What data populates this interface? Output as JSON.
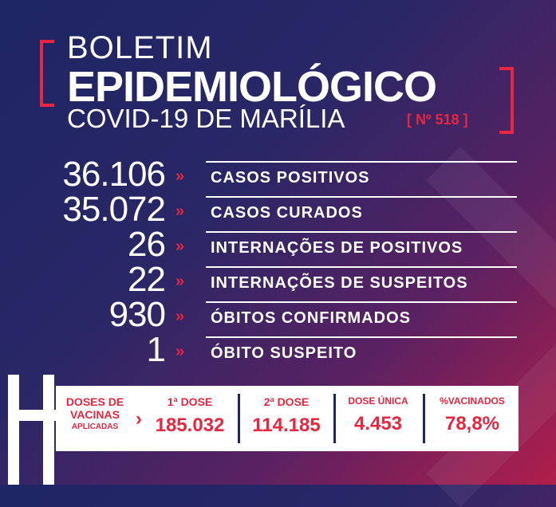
{
  "header": {
    "line1": "BOLETIM",
    "line2": "EPIDEMIOLÓGICO",
    "line3": "COVID-19 DE MARÍLIA",
    "number": "[ Nº 518 ]"
  },
  "stats": [
    {
      "value": "36.106",
      "label": "CASOS POSITIVOS"
    },
    {
      "value": "35.072",
      "label": "CASOS CURADOS"
    },
    {
      "value": "26",
      "label": "INTERNAÇÕES DE POSITIVOS"
    },
    {
      "value": "22",
      "label": "INTERNAÇÕES DE SUSPEITOS"
    },
    {
      "value": "930",
      "label": "ÓBITOS CONFIRMADOS"
    },
    {
      "value": "1",
      "label": "ÓBITO SUSPEITO"
    }
  ],
  "arrow": "»",
  "vaccines": {
    "title1": "DOSES DE",
    "title2": "VACINAS",
    "title3": "APLICADAS",
    "chevron": "›",
    "cells": [
      {
        "header": "1ª DOSE",
        "value": "185.032"
      },
      {
        "header": "2ª DOSE",
        "value": "114.185"
      },
      {
        "header": "DOSE ÚNICA",
        "value": "4.453"
      },
      {
        "header": "%VACINADOS",
        "value": "78,8%"
      }
    ]
  },
  "colors": {
    "accent": "#e8263f",
    "navy": "#1d2563"
  }
}
